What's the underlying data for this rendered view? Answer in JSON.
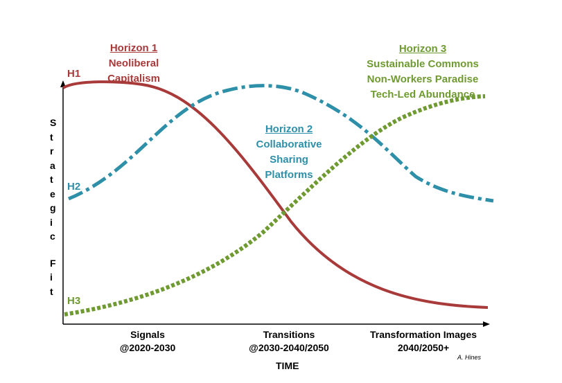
{
  "colors": {
    "h1": "#a83a3a",
    "h2": "#2e8fa8",
    "h3": "#6f9a32",
    "axis": "#000000"
  },
  "y_axis_label": "Strategic Fit",
  "x_axis_label": "TIME",
  "curve_labels": {
    "h1": "H1",
    "h2": "H2",
    "h3": "H3"
  },
  "horizons": {
    "h1": {
      "title": "Horizon 1",
      "lines": [
        "Neoliberal",
        "Capitalism"
      ]
    },
    "h2": {
      "title": "Horizon 2",
      "lines": [
        "Collaborative",
        "Sharing",
        "Platforms"
      ]
    },
    "h3": {
      "title": "Horizon 3",
      "lines": [
        "Sustainable Commons",
        "Non-Workers Paradise",
        "Tech-Led Abundance"
      ]
    }
  },
  "x_categories": [
    {
      "line1": "Signals",
      "line2": "@2020-2030"
    },
    {
      "line1": "Transitions",
      "line2": "@2030-2040/2050"
    },
    {
      "line1": "Transformation Images",
      "line2": "2040/2050+"
    }
  ],
  "author": "A. Hines"
}
